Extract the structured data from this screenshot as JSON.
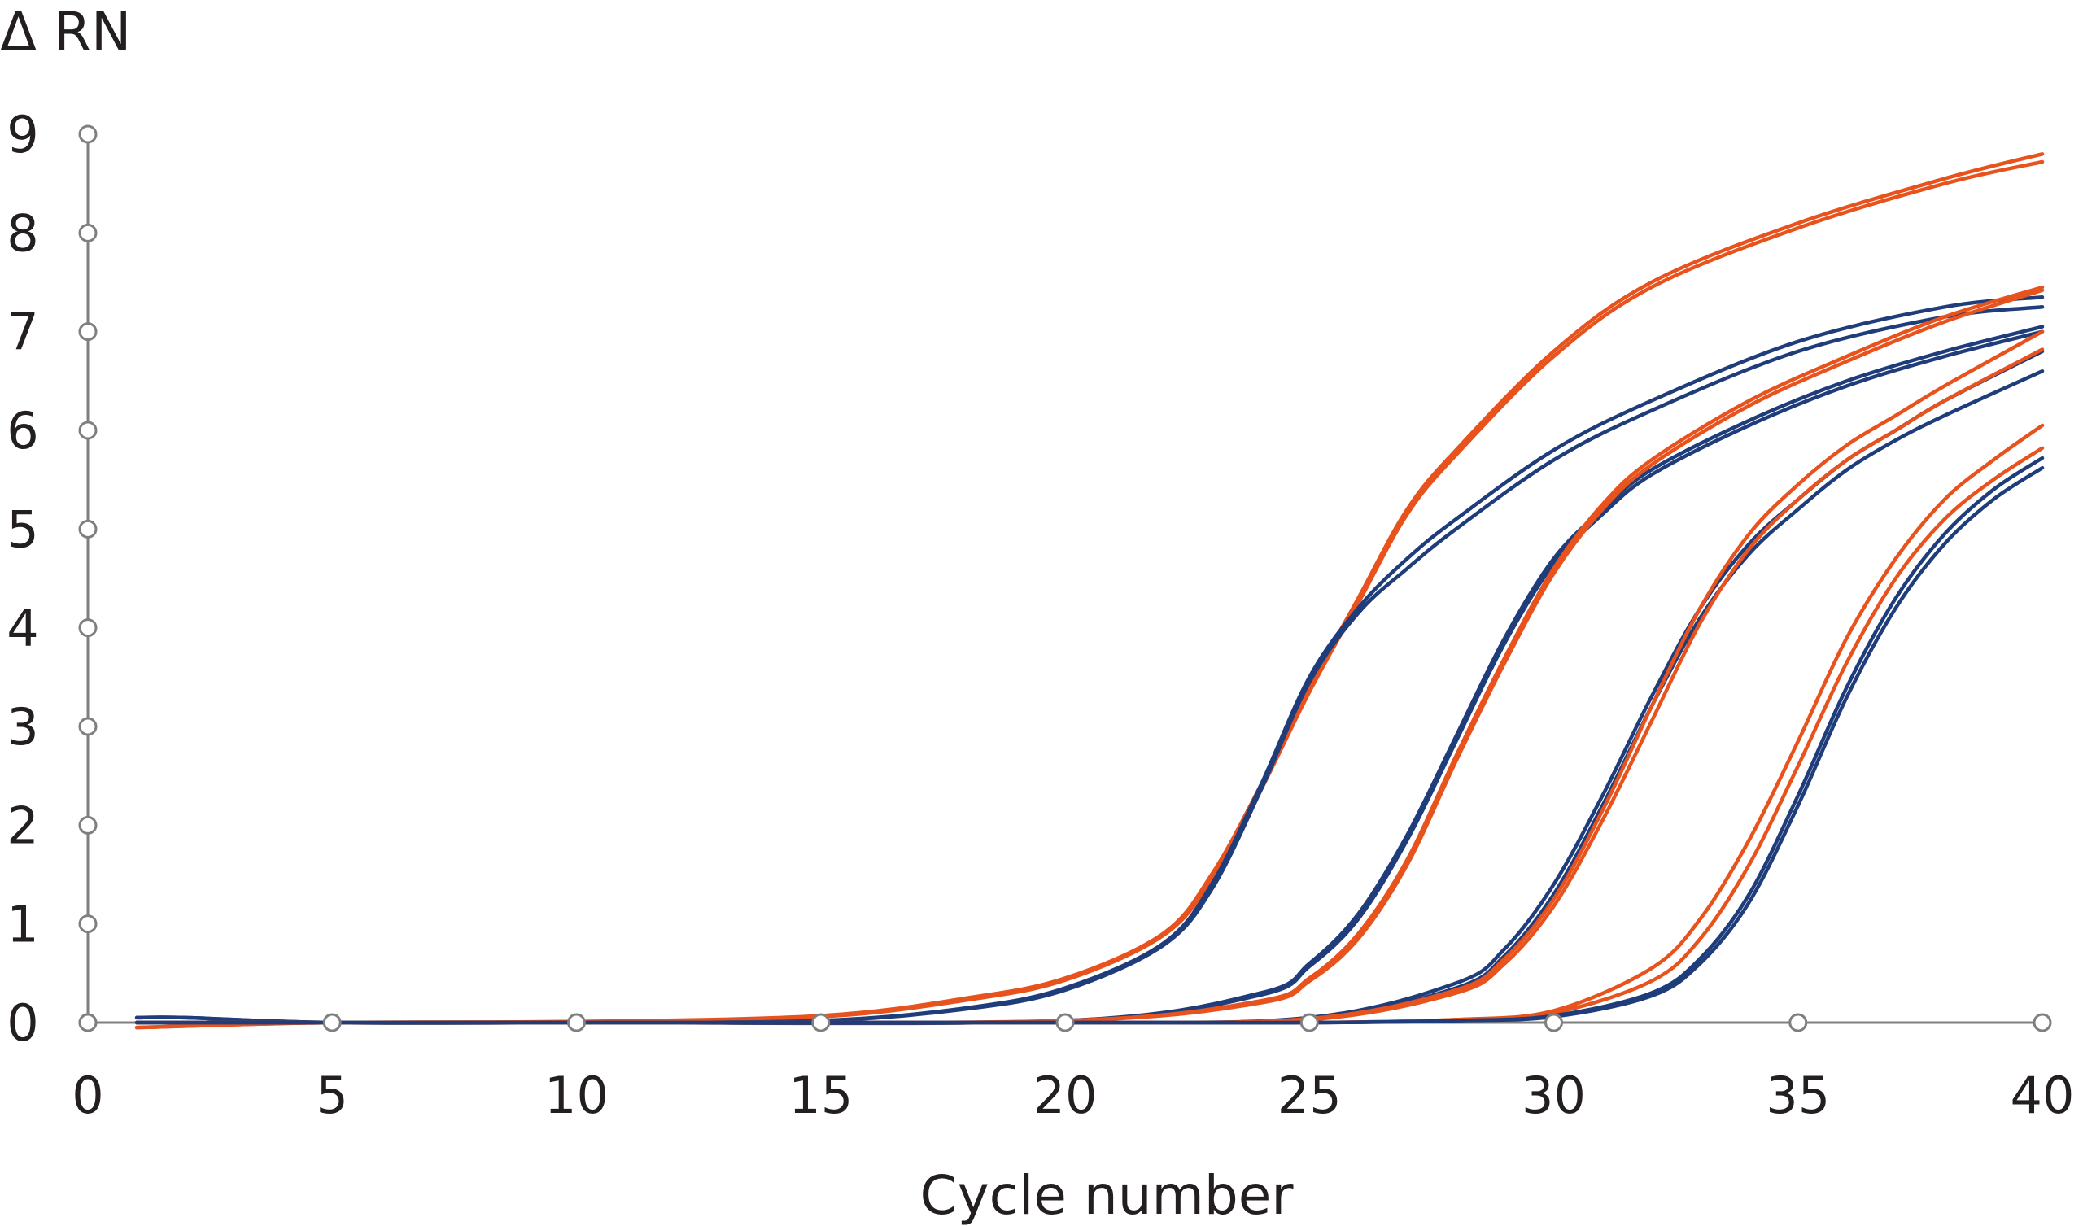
{
  "chart_data": {
    "type": "line",
    "title": "",
    "xlabel": "Cycle number",
    "ylabel": "Δ RN",
    "xlim": [
      0,
      40
    ],
    "ylim": [
      0,
      9
    ],
    "xticks": [
      0,
      5,
      10,
      15,
      20,
      25,
      30,
      35,
      40
    ],
    "yticks": [
      0,
      1,
      2,
      3,
      4,
      5,
      6,
      7,
      8,
      9
    ],
    "grid": false,
    "legend": "none",
    "colors": {
      "blue": "#1f3d7a",
      "orange": "#e8521d",
      "axis": "#7f7f7f",
      "text": "#231f20"
    },
    "series": [
      {
        "color": "orange",
        "x": [
          1,
          5,
          10,
          15,
          18,
          20,
          22,
          23,
          24,
          25,
          26,
          27,
          28,
          30,
          32,
          35,
          38,
          40
        ],
        "y": [
          -0.05,
          0,
          0.01,
          0.07,
          0.25,
          0.45,
          0.9,
          1.5,
          2.4,
          3.4,
          4.3,
          5.2,
          5.8,
          6.8,
          7.5,
          8.1,
          8.55,
          8.8
        ]
      },
      {
        "color": "orange",
        "x": [
          1,
          5,
          10,
          15,
          18,
          20,
          22,
          23,
          24,
          25,
          26,
          27,
          28,
          30,
          32,
          35,
          38,
          40
        ],
        "y": [
          -0.05,
          0,
          0.01,
          0.06,
          0.23,
          0.43,
          0.88,
          1.45,
          2.35,
          3.35,
          4.25,
          5.15,
          5.75,
          6.75,
          7.45,
          8.05,
          8.5,
          8.72
        ]
      },
      {
        "color": "blue",
        "x": [
          1,
          2,
          5,
          10,
          15,
          18,
          20,
          22,
          23,
          24,
          25,
          26,
          27,
          28,
          30,
          32,
          35,
          38,
          40
        ],
        "y": [
          0.05,
          0.05,
          0,
          0,
          0.02,
          0.15,
          0.35,
          0.8,
          1.4,
          2.4,
          3.5,
          4.2,
          4.7,
          5.1,
          5.8,
          6.3,
          6.9,
          7.25,
          7.35
        ]
      },
      {
        "color": "blue",
        "x": [
          1,
          2,
          5,
          10,
          15,
          18,
          20,
          22,
          23,
          24,
          25,
          26,
          27,
          28,
          30,
          32,
          35,
          38,
          40
        ],
        "y": [
          0.05,
          0.05,
          0,
          0,
          0.02,
          0.14,
          0.33,
          0.78,
          1.35,
          2.35,
          3.45,
          4.15,
          4.6,
          5.0,
          5.7,
          6.2,
          6.8,
          7.15,
          7.25
        ]
      },
      {
        "color": "blue",
        "x": [
          1,
          10,
          20,
          24,
          25,
          26,
          27,
          28,
          29,
          30,
          31,
          32,
          34,
          36,
          38,
          40
        ],
        "y": [
          0,
          0,
          0.02,
          0.3,
          0.6,
          1.1,
          1.9,
          2.9,
          3.9,
          4.7,
          5.2,
          5.6,
          6.1,
          6.5,
          6.8,
          7.05
        ]
      },
      {
        "color": "blue",
        "x": [
          1,
          10,
          20,
          24,
          25,
          26,
          27,
          28,
          29,
          30,
          31,
          32,
          34,
          36,
          38,
          40
        ],
        "y": [
          0,
          0,
          0.02,
          0.28,
          0.57,
          1.05,
          1.85,
          2.85,
          3.85,
          4.65,
          5.15,
          5.55,
          6.05,
          6.45,
          6.75,
          7.0
        ]
      },
      {
        "color": "orange",
        "x": [
          1,
          10,
          20,
          24,
          25,
          26,
          27,
          28,
          29,
          30,
          31,
          32,
          34,
          36,
          38,
          40
        ],
        "y": [
          0,
          0,
          0.02,
          0.22,
          0.45,
          0.9,
          1.65,
          2.7,
          3.7,
          4.6,
          5.25,
          5.7,
          6.3,
          6.75,
          7.15,
          7.45
        ]
      },
      {
        "color": "orange",
        "x": [
          1,
          10,
          20,
          24,
          25,
          26,
          27,
          28,
          29,
          30,
          31,
          32,
          34,
          36,
          38,
          40
        ],
        "y": [
          0,
          0,
          0.02,
          0.2,
          0.42,
          0.85,
          1.6,
          2.65,
          3.65,
          4.55,
          5.2,
          5.65,
          6.25,
          6.7,
          7.1,
          7.42
        ]
      },
      {
        "color": "blue",
        "x": [
          1,
          10,
          20,
          25,
          28,
          29,
          30,
          31,
          32,
          33,
          34,
          35,
          36,
          37,
          38,
          40
        ],
        "y": [
          0,
          0,
          0,
          0.05,
          0.4,
          0.75,
          1.4,
          2.3,
          3.3,
          4.2,
          4.85,
          5.3,
          5.7,
          6.0,
          6.3,
          6.8
        ]
      },
      {
        "color": "blue",
        "x": [
          1,
          10,
          20,
          25,
          28,
          29,
          30,
          31,
          32,
          33,
          34,
          35,
          36,
          37,
          38,
          40
        ],
        "y": [
          0,
          0,
          0,
          0.04,
          0.35,
          0.68,
          1.3,
          2.2,
          3.2,
          4.1,
          4.75,
          5.2,
          5.6,
          5.9,
          6.15,
          6.6
        ]
      },
      {
        "color": "orange",
        "x": [
          1,
          10,
          20,
          25,
          28,
          29,
          30,
          31,
          32,
          33,
          34,
          35,
          36,
          37,
          38,
          40
        ],
        "y": [
          0,
          0,
          0,
          0.04,
          0.33,
          0.65,
          1.25,
          2.15,
          3.2,
          4.2,
          4.95,
          5.45,
          5.85,
          6.15,
          6.45,
          7.0
        ]
      },
      {
        "color": "orange",
        "x": [
          1,
          10,
          20,
          25,
          28,
          29,
          30,
          31,
          32,
          33,
          34,
          35,
          36,
          37,
          38,
          40
        ],
        "y": [
          0,
          0,
          0,
          0.03,
          0.3,
          0.6,
          1.18,
          2.05,
          3.05,
          4.05,
          4.8,
          5.3,
          5.7,
          6.0,
          6.3,
          6.82
        ]
      },
      {
        "color": "orange",
        "x": [
          1,
          10,
          20,
          25,
          28,
          30,
          32,
          33,
          34,
          35,
          36,
          37,
          38,
          39,
          40
        ],
        "y": [
          0,
          0,
          0,
          0,
          0.03,
          0.12,
          0.55,
          1.05,
          1.85,
          2.85,
          3.9,
          4.7,
          5.3,
          5.7,
          6.05
        ]
      },
      {
        "color": "orange",
        "x": [
          1,
          10,
          20,
          25,
          28,
          30,
          32,
          33,
          34,
          35,
          36,
          37,
          38,
          39,
          40
        ],
        "y": [
          0,
          0,
          0,
          0,
          0.03,
          0.1,
          0.42,
          0.85,
          1.6,
          2.6,
          3.65,
          4.5,
          5.1,
          5.5,
          5.82
        ]
      },
      {
        "color": "blue",
        "x": [
          1,
          10,
          20,
          25,
          28,
          30,
          32,
          33,
          34,
          35,
          36,
          37,
          38,
          39,
          40
        ],
        "y": [
          0,
          0,
          0,
          0,
          0.02,
          0.07,
          0.3,
          0.65,
          1.3,
          2.3,
          3.4,
          4.3,
          4.95,
          5.4,
          5.72
        ]
      },
      {
        "color": "blue",
        "x": [
          1,
          10,
          20,
          25,
          28,
          30,
          32,
          33,
          34,
          35,
          36,
          37,
          38,
          39,
          40
        ],
        "y": [
          0,
          0,
          0,
          0,
          0.02,
          0.06,
          0.27,
          0.6,
          1.22,
          2.2,
          3.3,
          4.2,
          4.85,
          5.3,
          5.62
        ]
      }
    ]
  }
}
